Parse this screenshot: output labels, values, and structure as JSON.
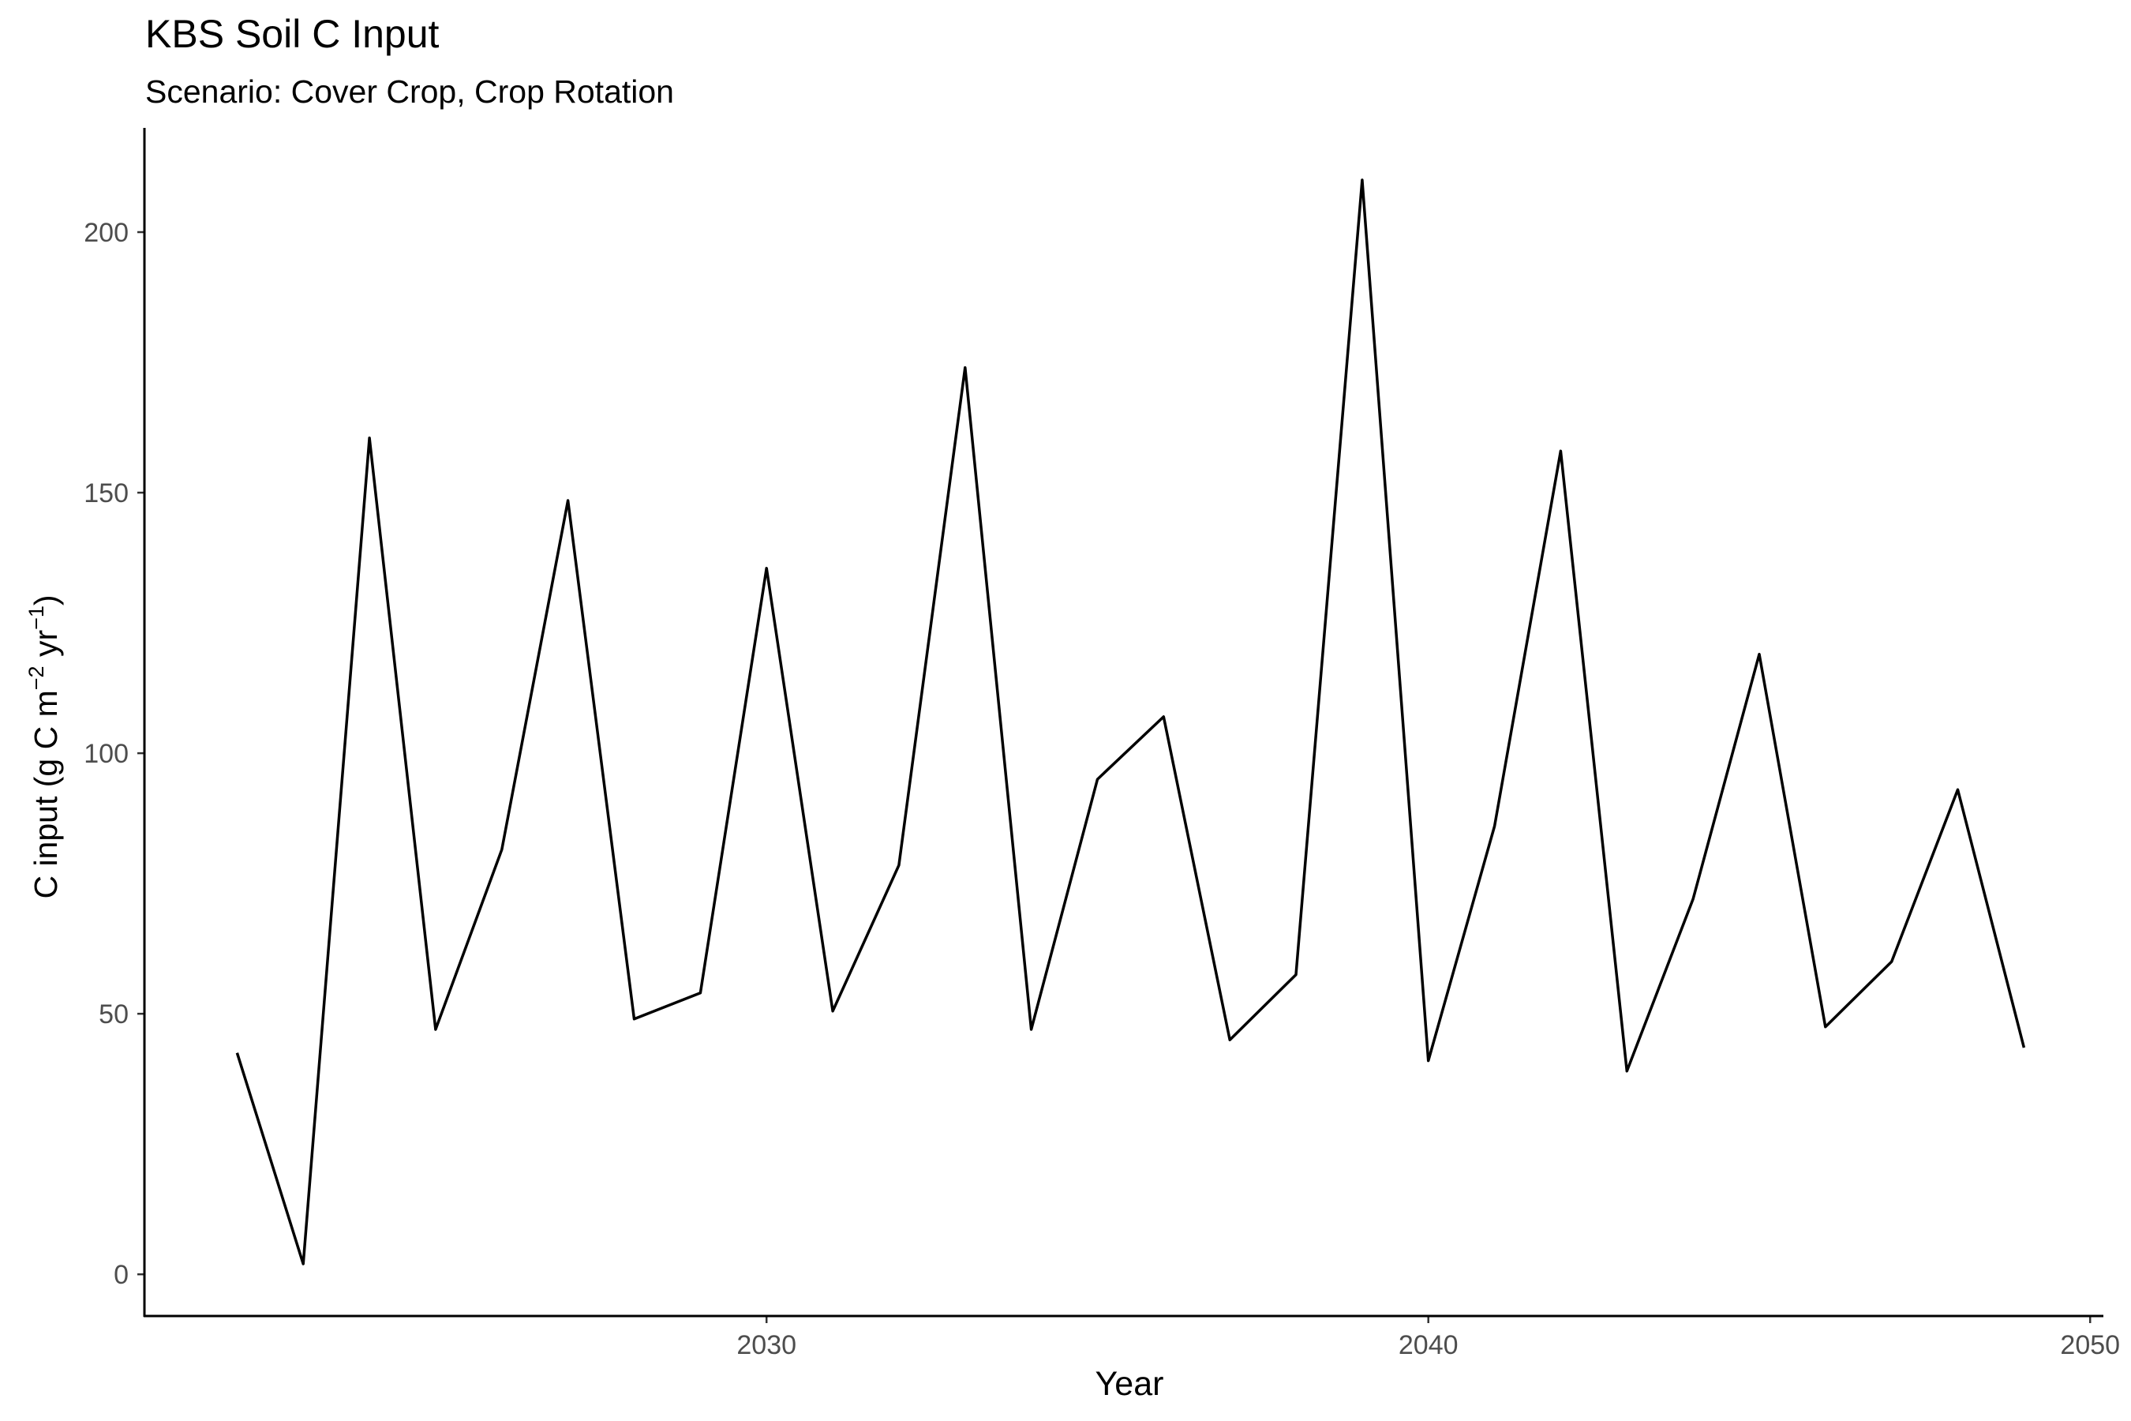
{
  "chart_data": {
    "type": "line",
    "title": "KBS Soil C Input",
    "subtitle": "Scenario: Cover Crop, Crop Rotation",
    "xlabel": "Year",
    "ylabel": {
      "main": "C input (g C m",
      "sup1": "−2",
      "mid": " yr",
      "sup2": "−1",
      "end": ")"
    },
    "xlim": [
      2020.6,
      2050.2
    ],
    "ylim": [
      -8,
      220
    ],
    "x_ticks": [
      {
        "value": 2030,
        "label": "2030"
      },
      {
        "value": 2040,
        "label": "2040"
      },
      {
        "value": 2050,
        "label": "2050"
      }
    ],
    "y_ticks": [
      {
        "value": 0,
        "label": "0"
      },
      {
        "value": 50,
        "label": "50"
      },
      {
        "value": 100,
        "label": "100"
      },
      {
        "value": 150,
        "label": "150"
      },
      {
        "value": 200,
        "label": "200"
      }
    ],
    "grid": false,
    "legend": "none",
    "line_color": "#000000",
    "series": [
      {
        "x": [
          2022,
          2023,
          2024,
          2025,
          2026,
          2027,
          2028,
          2029,
          2030,
          2031,
          2032,
          2033,
          2034,
          2035,
          2036,
          2037,
          2038,
          2039,
          2040,
          2041,
          2042,
          2043,
          2044,
          2045,
          2046,
          2047,
          2048,
          2049
        ],
        "values": [
          42.5,
          2.0,
          160.5,
          47.0,
          81.5,
          148.5,
          49.0,
          54.0,
          135.5,
          50.5,
          78.5,
          174.0,
          47.0,
          95.0,
          107.0,
          45.0,
          57.5,
          210.0,
          41.0,
          86.0,
          158.0,
          39.0,
          72.0,
          119.0,
          47.5,
          60.0,
          93.0,
          43.5
        ]
      }
    ]
  }
}
